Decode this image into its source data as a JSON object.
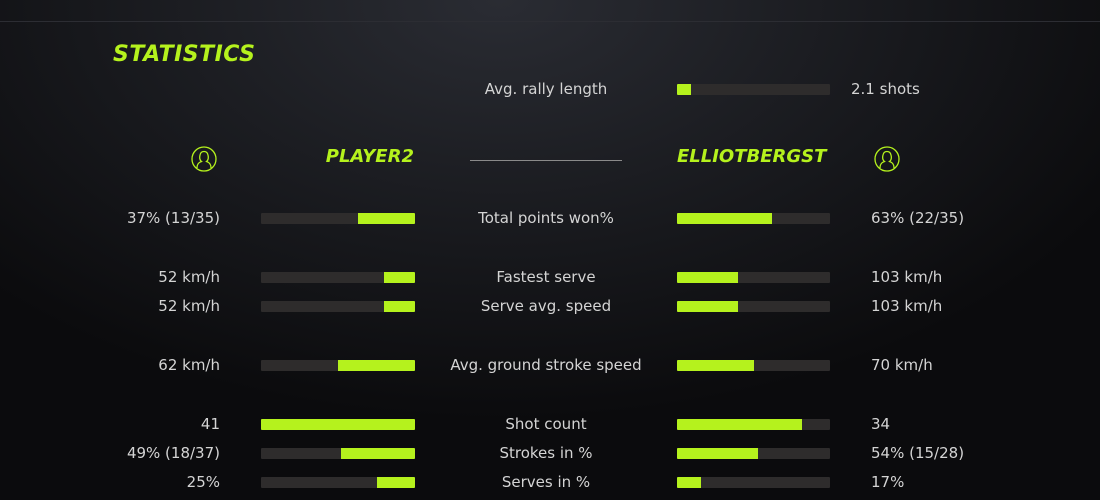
{
  "title": "STATISTICS",
  "rally": {
    "label": "Avg. rally length",
    "value": "2.1 shots",
    "fraction": 0.09
  },
  "players": {
    "left": {
      "name": "PLAYER2",
      "icon": "user-circle-icon"
    },
    "right": {
      "name": "ELLIOTBERGST",
      "icon": "user-circle-icon"
    }
  },
  "accent": "#b5f21d",
  "stats": [
    {
      "label": "Total points won%",
      "left": "37% (13/35)",
      "right": "63% (22/35)",
      "left_fill": 0.37,
      "right_fill": 0.62
    },
    {
      "label": "Fastest serve",
      "left": "52 km/h",
      "right": "103 km/h",
      "left_fill": 0.2,
      "right_fill": 0.4
    },
    {
      "label": "Serve avg. speed",
      "left": "52 km/h",
      "right": "103 km/h",
      "left_fill": 0.2,
      "right_fill": 0.4
    },
    {
      "label": "Avg. ground stroke speed",
      "left": "62 km/h",
      "right": "70 km/h",
      "left_fill": 0.5,
      "right_fill": 0.5
    },
    {
      "label": "Shot count",
      "left": "41",
      "right": "34",
      "left_fill": 1.0,
      "right_fill": 0.82
    },
    {
      "label": "Strokes in %",
      "left": "49% (18/37)",
      "right": "54% (15/28)",
      "left_fill": 0.48,
      "right_fill": 0.53
    },
    {
      "label": "Serves in %",
      "left": "25%",
      "right": "17%",
      "left_fill": 0.25,
      "right_fill": 0.16
    }
  ]
}
